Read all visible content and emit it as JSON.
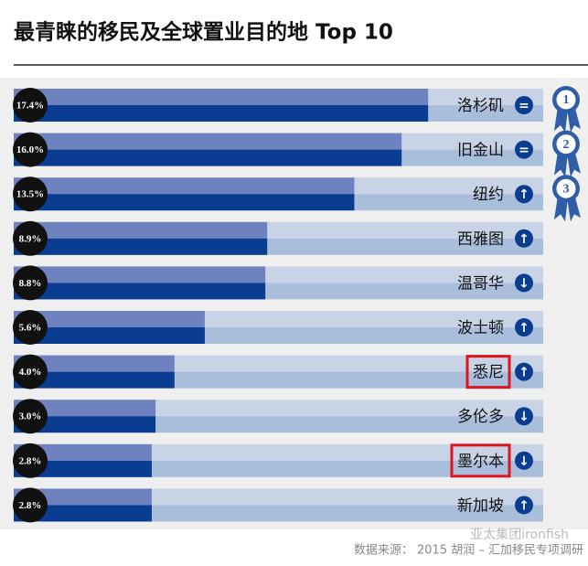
{
  "chart_data": {
    "type": "bar",
    "title": "最青睐的移民及全球置业目的地 Top 10",
    "categories": [
      "洛杉矶",
      "旧金山",
      "纽约",
      "西雅图",
      "温哥华",
      "波士顿",
      "悉尼",
      "多伦多",
      "墨尔本",
      "新加坡"
    ],
    "values": [
      17.4,
      16.0,
      13.5,
      8.9,
      8.8,
      5.6,
      4.0,
      3.0,
      2.8,
      2.8
    ],
    "value_labels": [
      "17.4%",
      "16.0%",
      "13.5%",
      "8.9%",
      "8.8%",
      "5.6%",
      "4.0%",
      "3.0%",
      "2.8%",
      "2.8%"
    ],
    "trends": [
      "=",
      "=",
      "↑",
      "↑",
      "↓",
      "↑",
      "↑",
      "↓",
      "↓",
      "↑"
    ],
    "ranks": [
      "1",
      "2",
      "3"
    ],
    "highlighted": [
      false,
      false,
      false,
      false,
      false,
      false,
      true,
      false,
      true,
      false
    ],
    "color": "#0a3d91",
    "source": "数据来源： 2015 胡润 – 汇加移民专项调研",
    "watermark": "亚太集团ironfish"
  }
}
